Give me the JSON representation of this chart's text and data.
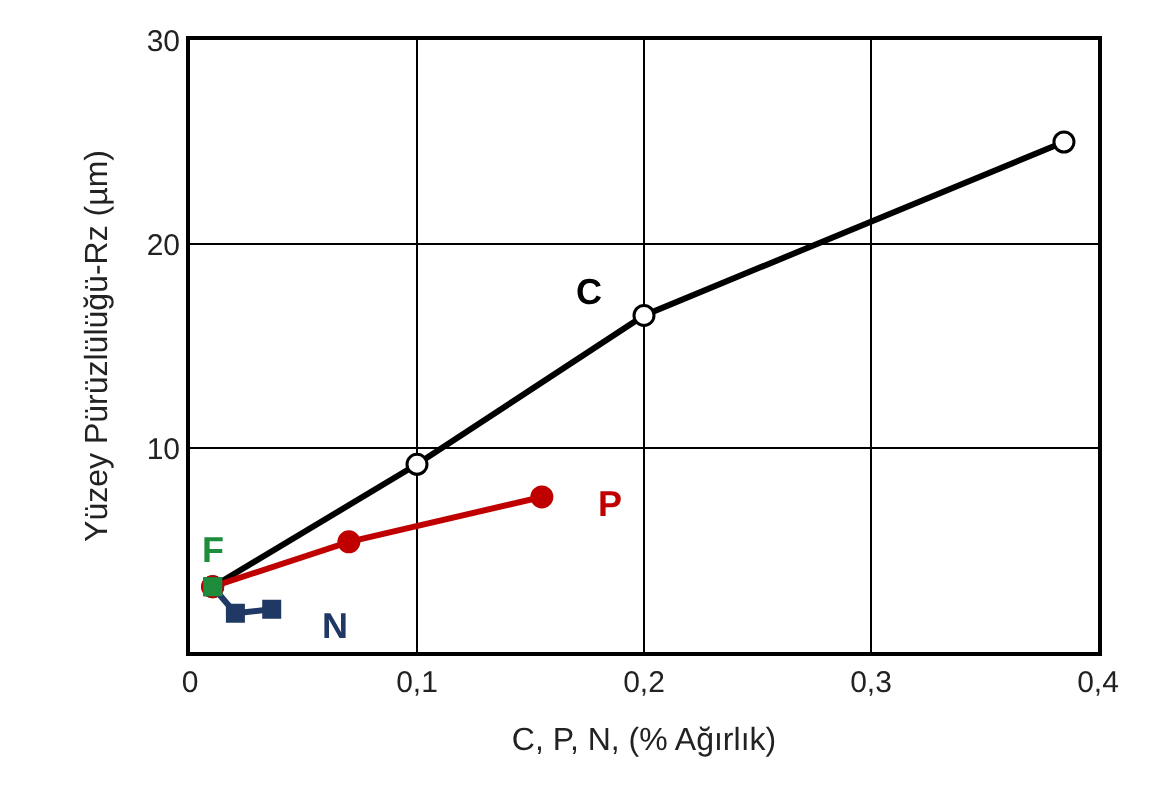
{
  "chart_data": {
    "type": "line",
    "xlabel": "C, P, N, (% Ağırlık)",
    "ylabel": "Yüzey Pürüzlülüğü-Rz (µm)",
    "xlim": [
      0,
      0.4
    ],
    "ylim": [
      0,
      30
    ],
    "xticks": [
      0,
      {
        "value": 0.1,
        "label": "0,1"
      },
      {
        "value": 0.2,
        "label": "0,2"
      },
      {
        "value": 0.3,
        "label": "0,3"
      },
      {
        "value": 0.4,
        "label": "0,4"
      }
    ],
    "yticks": [
      10,
      20,
      30
    ],
    "grid": true,
    "legend": false,
    "line_style": "solid",
    "series": [
      {
        "name": "C",
        "color": "#000000",
        "marker": "circle",
        "x": [
          0.01,
          0.1,
          0.2,
          0.385
        ],
        "values": [
          3.2,
          9.2,
          16.5,
          25.0
        ]
      },
      {
        "name": "P",
        "color": "#c00000",
        "marker": "circle",
        "x": [
          0.01,
          0.07,
          0.155
        ],
        "values": [
          3.2,
          5.4,
          7.6
        ]
      },
      {
        "name": "N",
        "color": "#1f3864",
        "marker": "square",
        "x": [
          0.01,
          0.02,
          0.036
        ],
        "values": [
          3.2,
          1.9,
          2.1
        ]
      },
      {
        "name": "F",
        "color": "#1e8c3a",
        "marker": "square",
        "type": "scatter",
        "x": [
          0.01
        ],
        "values": [
          3.2
        ]
      }
    ]
  }
}
